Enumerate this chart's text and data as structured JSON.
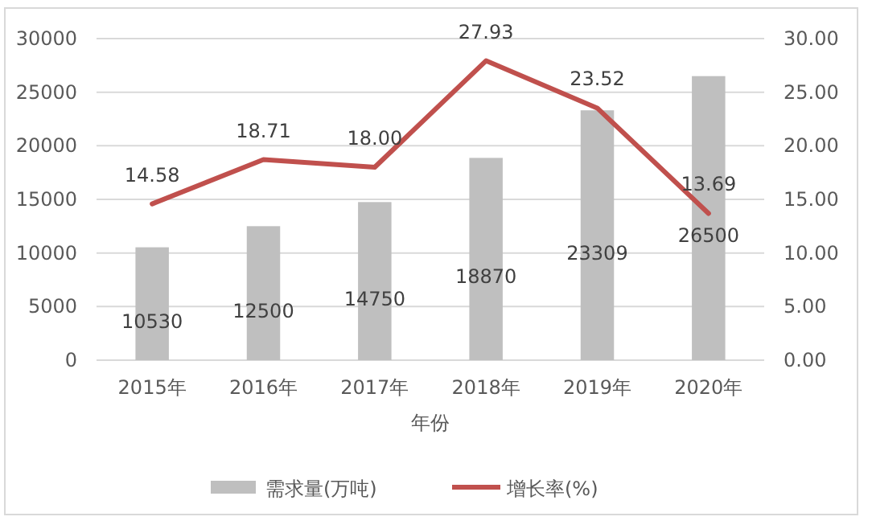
{
  "chart_data": {
    "type": "bar",
    "xlabel": "年份",
    "categories": [
      "2015年",
      "2016年",
      "2017年",
      "2018年",
      "2019年",
      "2020年"
    ],
    "series": [
      {
        "name": "需求量(万吨)",
        "color": "#bfbfbf",
        "values": [
          10530,
          12500,
          14750,
          18870,
          23309,
          26500
        ]
      },
      {
        "name": "增长率(%)",
        "type": "line",
        "axis": "y2",
        "color": "#c0504d",
        "values": [
          14.58,
          18.71,
          18.0,
          27.93,
          23.52,
          13.69
        ],
        "value_labels": [
          "14.58",
          "18.71",
          "18.00",
          "27.93",
          "23.52",
          "13.69"
        ]
      }
    ],
    "ylim": [
      0,
      30000
    ],
    "yticks": [
      0,
      5000,
      10000,
      15000,
      20000,
      25000,
      30000
    ],
    "y2lim": [
      0,
      30
    ],
    "y2ticks": [
      {
        "value": 0,
        "label": "0.00"
      },
      {
        "value": 5,
        "label": "5.00"
      },
      {
        "value": 10,
        "label": "10.00"
      },
      {
        "value": 15,
        "label": "15.00"
      },
      {
        "value": 20,
        "label": "20.00"
      },
      {
        "value": 25,
        "label": "25.00"
      },
      {
        "value": 30,
        "label": "30.00"
      }
    ],
    "grid": "y",
    "legend": "bottom",
    "data_labels": true,
    "marker": "none",
    "line_style": "solid"
  }
}
